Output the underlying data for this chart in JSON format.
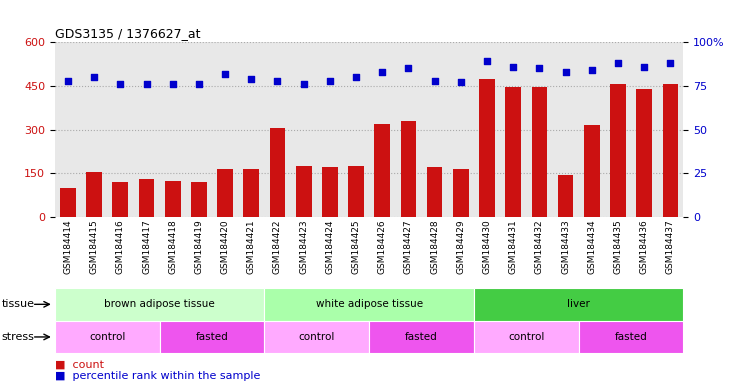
{
  "title": "GDS3135 / 1376627_at",
  "samples": [
    "GSM184414",
    "GSM184415",
    "GSM184416",
    "GSM184417",
    "GSM184418",
    "GSM184419",
    "GSM184420",
    "GSM184421",
    "GSM184422",
    "GSM184423",
    "GSM184424",
    "GSM184425",
    "GSM184426",
    "GSM184427",
    "GSM184428",
    "GSM184429",
    "GSM184430",
    "GSM184431",
    "GSM184432",
    "GSM184433",
    "GSM184434",
    "GSM184435",
    "GSM184436",
    "GSM184437"
  ],
  "counts": [
    100,
    155,
    120,
    130,
    125,
    120,
    165,
    165,
    305,
    175,
    170,
    175,
    320,
    330,
    170,
    165,
    475,
    445,
    445,
    145,
    315,
    455,
    440,
    455
  ],
  "percentiles": [
    78,
    80,
    76,
    76,
    76,
    76,
    82,
    79,
    78,
    76,
    78,
    80,
    83,
    85,
    78,
    77,
    89,
    86,
    85,
    83,
    84,
    88,
    86,
    88
  ],
  "ylim_left": [
    0,
    600
  ],
  "ylim_right": [
    0,
    100
  ],
  "yticks_left": [
    0,
    150,
    300,
    450,
    600
  ],
  "yticks_right": [
    0,
    25,
    50,
    75,
    100
  ],
  "bar_color": "#cc1111",
  "dot_color": "#0000cc",
  "grid_color": "#aaaaaa",
  "bg_color": "#e8e8e8",
  "tissue_groups": [
    {
      "label": "brown adipose tissue",
      "start": 0,
      "end": 8,
      "color": "#ccffcc"
    },
    {
      "label": "white adipose tissue",
      "start": 8,
      "end": 16,
      "color": "#aaffaa"
    },
    {
      "label": "liver",
      "start": 16,
      "end": 24,
      "color": "#44cc44"
    }
  ],
  "stress_groups": [
    {
      "label": "control",
      "start": 0,
      "end": 4,
      "color": "#ffaaff"
    },
    {
      "label": "fasted",
      "start": 4,
      "end": 8,
      "color": "#ee55ee"
    },
    {
      "label": "control",
      "start": 8,
      "end": 12,
      "color": "#ffaaff"
    },
    {
      "label": "fasted",
      "start": 12,
      "end": 16,
      "color": "#ee55ee"
    },
    {
      "label": "control",
      "start": 16,
      "end": 20,
      "color": "#ffaaff"
    },
    {
      "label": "fasted",
      "start": 20,
      "end": 24,
      "color": "#ee55ee"
    }
  ]
}
